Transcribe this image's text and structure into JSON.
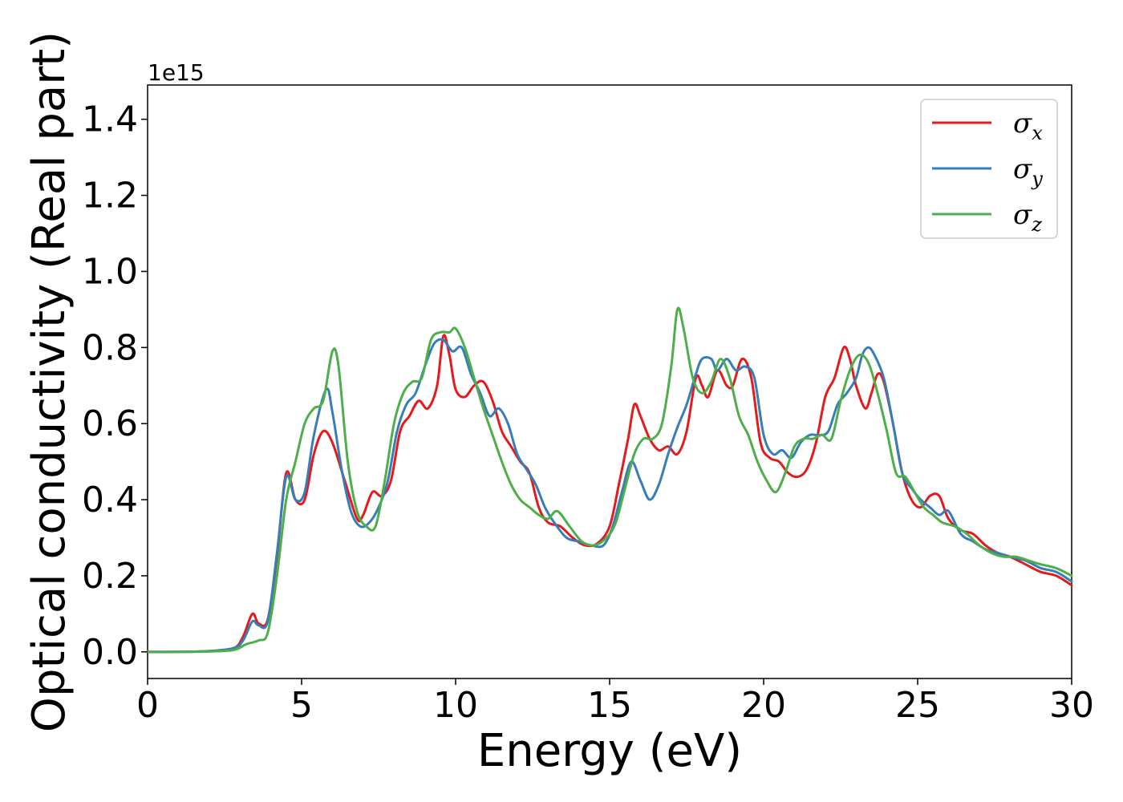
{
  "chart_data": {
    "type": "line",
    "xlabel": "Energy (eV)",
    "ylabel": "Optical conductivity (Real part)",
    "y_offset_label": "1e15",
    "xlim": [
      0,
      30
    ],
    "ylim": [
      -0.07,
      1.49
    ],
    "xticks": [
      0,
      5,
      10,
      15,
      20,
      25,
      30
    ],
    "xtick_labels": [
      "0",
      "5",
      "10",
      "15",
      "20",
      "25",
      "30"
    ],
    "yticks": [
      0.0,
      0.2,
      0.4,
      0.6,
      0.8,
      1.0,
      1.2,
      1.4
    ],
    "ytick_labels": [
      "0.0",
      "0.2",
      "0.4",
      "0.6",
      "0.8",
      "1.0",
      "1.2",
      "1.4"
    ],
    "grid": false,
    "legend_position": "top-right",
    "series": [
      {
        "name": "σx",
        "symbol": "σ",
        "subscript": "x",
        "color": "#e41a1c",
        "x": [
          0,
          1,
          2,
          2.8,
          3.1,
          3.4,
          3.6,
          3.9,
          4.2,
          4.5,
          4.8,
          5.1,
          5.4,
          5.7,
          6.0,
          6.4,
          6.8,
          7.0,
          7.3,
          7.6,
          7.9,
          8.2,
          8.5,
          8.8,
          9.1,
          9.4,
          9.6,
          9.8,
          10.0,
          10.3,
          10.6,
          10.9,
          11.2,
          11.5,
          11.8,
          12.1,
          12.4,
          12.7,
          13.0,
          13.4,
          13.8,
          14.2,
          14.6,
          15.0,
          15.3,
          15.6,
          15.8,
          16.0,
          16.3,
          16.6,
          16.9,
          17.2,
          17.5,
          17.8,
          18.0,
          18.2,
          18.5,
          18.8,
          19.0,
          19.3,
          19.6,
          19.9,
          20.2,
          20.5,
          20.8,
          21.1,
          21.4,
          21.7,
          22.0,
          22.3,
          22.6,
          22.8,
          23.0,
          23.3,
          23.5,
          23.7,
          23.9,
          24.2,
          24.5,
          24.8,
          25.1,
          25.4,
          25.7,
          26.0,
          26.4,
          26.8,
          27.2,
          27.6,
          28.0,
          28.5,
          29.0,
          29.5,
          30.0
        ],
        "values": [
          0.0,
          0.0,
          0.002,
          0.01,
          0.04,
          0.1,
          0.075,
          0.085,
          0.25,
          0.47,
          0.4,
          0.4,
          0.52,
          0.58,
          0.55,
          0.45,
          0.35,
          0.36,
          0.42,
          0.41,
          0.45,
          0.58,
          0.62,
          0.66,
          0.64,
          0.7,
          0.83,
          0.78,
          0.69,
          0.67,
          0.7,
          0.71,
          0.66,
          0.58,
          0.54,
          0.5,
          0.47,
          0.38,
          0.34,
          0.33,
          0.3,
          0.28,
          0.285,
          0.33,
          0.44,
          0.56,
          0.65,
          0.62,
          0.56,
          0.53,
          0.54,
          0.52,
          0.58,
          0.72,
          0.7,
          0.67,
          0.74,
          0.7,
          0.7,
          0.77,
          0.72,
          0.55,
          0.51,
          0.5,
          0.47,
          0.46,
          0.48,
          0.55,
          0.67,
          0.72,
          0.8,
          0.77,
          0.7,
          0.64,
          0.68,
          0.73,
          0.71,
          0.6,
          0.47,
          0.4,
          0.38,
          0.41,
          0.41,
          0.35,
          0.32,
          0.31,
          0.28,
          0.26,
          0.25,
          0.23,
          0.21,
          0.2,
          0.175
        ]
      },
      {
        "name": "σy",
        "symbol": "σ",
        "subscript": "y",
        "color": "#377eb8",
        "x": [
          0,
          1,
          2,
          2.8,
          3.1,
          3.4,
          3.6,
          3.9,
          4.2,
          4.5,
          4.8,
          5.1,
          5.4,
          5.8,
          6.0,
          6.3,
          6.6,
          6.9,
          7.2,
          7.5,
          7.8,
          8.1,
          8.4,
          8.7,
          9.0,
          9.3,
          9.6,
          9.9,
          10.2,
          10.5,
          10.8,
          11.1,
          11.4,
          11.7,
          12.0,
          12.3,
          12.6,
          12.9,
          13.2,
          13.6,
          14.0,
          14.4,
          14.8,
          15.1,
          15.4,
          15.7,
          16.0,
          16.3,
          16.6,
          16.9,
          17.2,
          17.5,
          17.8,
          18.0,
          18.3,
          18.5,
          18.8,
          19.1,
          19.4,
          19.7,
          20.0,
          20.3,
          20.6,
          20.9,
          21.2,
          21.5,
          21.8,
          22.1,
          22.4,
          22.7,
          23.0,
          23.2,
          23.4,
          23.6,
          23.9,
          24.2,
          24.5,
          24.8,
          25.1,
          25.4,
          25.7,
          26.0,
          26.4,
          26.8,
          27.2,
          27.6,
          28.0,
          28.5,
          29.0,
          29.5,
          30.0
        ],
        "values": [
          0.0,
          0.0,
          0.002,
          0.01,
          0.03,
          0.08,
          0.07,
          0.08,
          0.26,
          0.46,
          0.4,
          0.42,
          0.57,
          0.69,
          0.63,
          0.48,
          0.37,
          0.33,
          0.34,
          0.38,
          0.45,
          0.58,
          0.65,
          0.68,
          0.75,
          0.81,
          0.82,
          0.79,
          0.8,
          0.73,
          0.68,
          0.62,
          0.64,
          0.6,
          0.52,
          0.48,
          0.44,
          0.38,
          0.34,
          0.3,
          0.29,
          0.28,
          0.28,
          0.33,
          0.42,
          0.5,
          0.45,
          0.4,
          0.44,
          0.52,
          0.59,
          0.65,
          0.73,
          0.77,
          0.77,
          0.74,
          0.77,
          0.74,
          0.75,
          0.72,
          0.57,
          0.52,
          0.53,
          0.51,
          0.55,
          0.57,
          0.57,
          0.58,
          0.65,
          0.68,
          0.72,
          0.78,
          0.8,
          0.78,
          0.72,
          0.6,
          0.47,
          0.43,
          0.4,
          0.38,
          0.36,
          0.37,
          0.31,
          0.29,
          0.27,
          0.26,
          0.25,
          0.24,
          0.22,
          0.21,
          0.185
        ]
      },
      {
        "name": "σz",
        "symbol": "σ",
        "subscript": "z",
        "color": "#4daf4a",
        "x": [
          0,
          1,
          2,
          2.8,
          3.2,
          3.6,
          3.9,
          4.2,
          4.5,
          4.8,
          5.1,
          5.4,
          5.7,
          6.0,
          6.2,
          6.5,
          6.8,
          7.1,
          7.4,
          7.7,
          8.0,
          8.3,
          8.6,
          8.9,
          9.2,
          9.5,
          9.8,
          10.0,
          10.3,
          10.6,
          10.9,
          11.2,
          11.5,
          11.8,
          12.1,
          12.4,
          12.7,
          13.0,
          13.3,
          13.7,
          14.1,
          14.5,
          14.9,
          15.2,
          15.5,
          15.8,
          16.1,
          16.4,
          16.7,
          17.0,
          17.2,
          17.4,
          17.7,
          18.0,
          18.3,
          18.6,
          18.9,
          19.2,
          19.5,
          19.8,
          20.1,
          20.4,
          20.7,
          21.0,
          21.3,
          21.6,
          21.9,
          22.2,
          22.5,
          22.8,
          23.1,
          23.4,
          23.7,
          24.0,
          24.3,
          24.6,
          24.9,
          25.2,
          25.5,
          25.8,
          26.2,
          26.6,
          27.0,
          27.4,
          27.8,
          28.2,
          28.6,
          29.0,
          29.5,
          30.0
        ],
        "values": [
          0.0,
          0.0,
          0.001,
          0.005,
          0.02,
          0.03,
          0.05,
          0.2,
          0.4,
          0.5,
          0.6,
          0.64,
          0.66,
          0.79,
          0.75,
          0.5,
          0.37,
          0.33,
          0.33,
          0.45,
          0.6,
          0.68,
          0.71,
          0.72,
          0.82,
          0.84,
          0.84,
          0.85,
          0.8,
          0.72,
          0.64,
          0.57,
          0.5,
          0.44,
          0.4,
          0.38,
          0.36,
          0.35,
          0.37,
          0.33,
          0.29,
          0.28,
          0.3,
          0.34,
          0.43,
          0.52,
          0.56,
          0.56,
          0.6,
          0.75,
          0.9,
          0.85,
          0.72,
          0.68,
          0.71,
          0.77,
          0.72,
          0.62,
          0.57,
          0.5,
          0.45,
          0.42,
          0.47,
          0.54,
          0.56,
          0.56,
          0.57,
          0.56,
          0.66,
          0.74,
          0.78,
          0.76,
          0.68,
          0.58,
          0.47,
          0.46,
          0.42,
          0.38,
          0.36,
          0.34,
          0.33,
          0.31,
          0.28,
          0.26,
          0.25,
          0.25,
          0.24,
          0.23,
          0.22,
          0.2
        ]
      }
    ]
  }
}
